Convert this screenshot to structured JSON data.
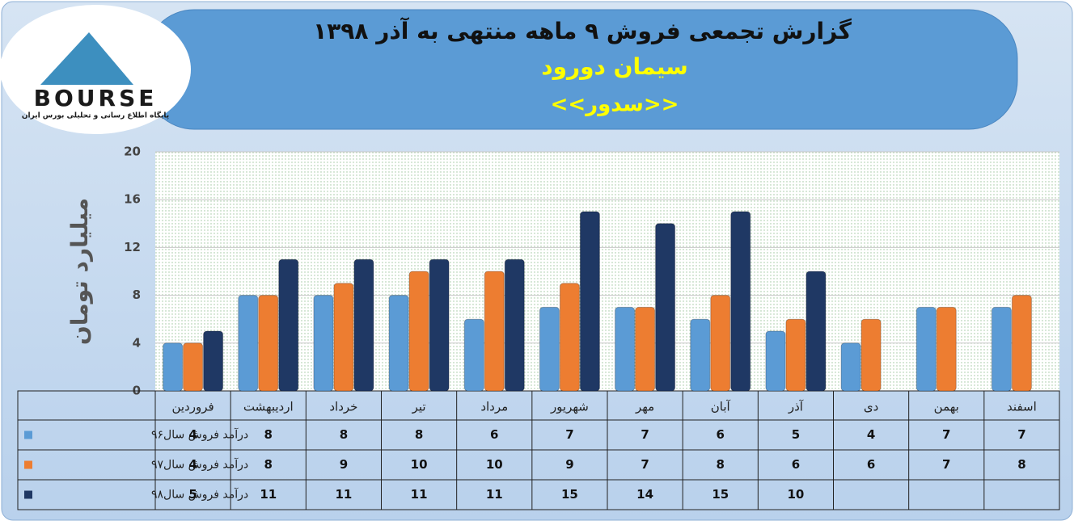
{
  "logo": {
    "name": "BOURSE",
    "tagline": "پایگاه اطلاع رسانی و تحلیلی بورس ایران"
  },
  "chart_data": {
    "type": "bar",
    "title": "گزارش تجمعی فروش ۹ ماهه منتهی به آذر ۱۳۹۸",
    "subtitle": "سیمان دورود",
    "symbol": "<<سدور>>",
    "y_label": "میلیارد تومان",
    "categories": [
      "فروردین",
      "اردیبهشت",
      "خرداد",
      "تیر",
      "مرداد",
      "شهریور",
      "مهر",
      "آبان",
      "آذر",
      "دی",
      "بهمن",
      "اسفند"
    ],
    "series": [
      {
        "name": "درآمد فروش سال۹۶",
        "color": "#5b9bd5",
        "values": [
          4,
          8,
          8,
          8,
          6,
          7,
          7,
          6,
          5,
          4,
          7,
          7
        ]
      },
      {
        "name": "درآمد فروش سال۹۷",
        "color": "#ed7d31",
        "values": [
          4,
          8,
          9,
          10,
          10,
          9,
          7,
          8,
          6,
          6,
          7,
          8
        ]
      },
      {
        "name": "درآمد فروش سال۹۸",
        "color": "#1f3864",
        "values": [
          5,
          11,
          11,
          11,
          11,
          15,
          14,
          15,
          10,
          null,
          null,
          null
        ]
      }
    ],
    "ylim": [
      0,
      20
    ],
    "yticks": [
      0,
      4,
      8,
      12,
      16,
      20
    ],
    "grid": true
  }
}
